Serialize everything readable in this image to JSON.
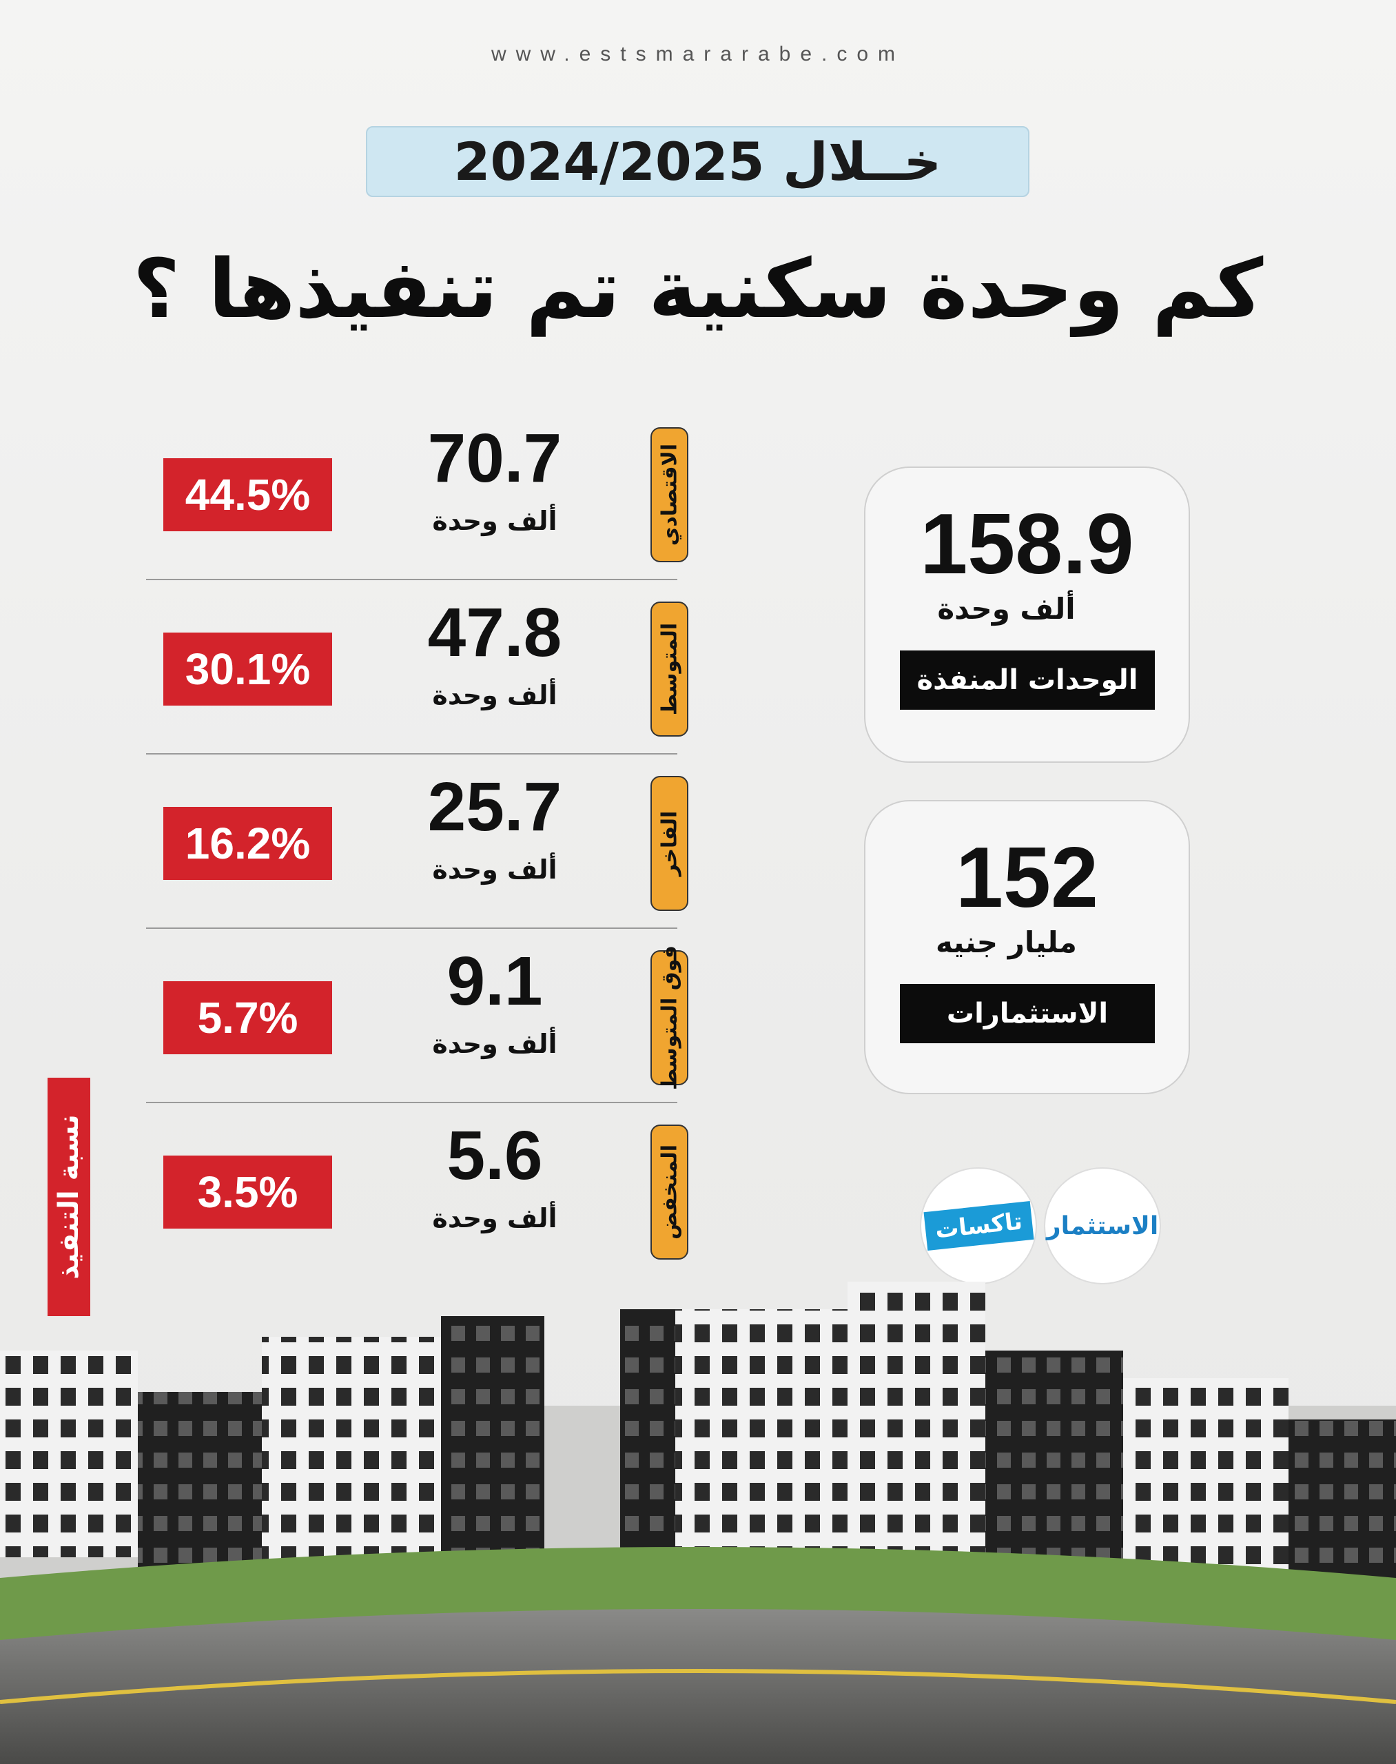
{
  "header": {
    "website": "www.estsmararabe.com",
    "period": "خــلال 2024/2025",
    "title": "كم وحدة سكنية تم تنفيذها ؟"
  },
  "summary": [
    {
      "value": "158.9",
      "unit": "ألف وحدة",
      "label": "الوحدات المنفذة"
    },
    {
      "value": "152",
      "unit": "مليار جنيه",
      "label": "الاستثمارات"
    }
  ],
  "categories": [
    {
      "name": "الاقتصادي",
      "value": "70.7",
      "unit": "ألف وحدة",
      "share": "44.5%"
    },
    {
      "name": "المتوسط",
      "value": "47.8",
      "unit": "ألف وحدة",
      "share": "30.1%"
    },
    {
      "name": "الفاخر",
      "value": "25.7",
      "unit": "ألف وحدة",
      "share": "16.2%"
    },
    {
      "name": "فوق المتوسط",
      "value": "9.1",
      "unit": "ألف وحدة",
      "share": "5.7%"
    },
    {
      "name": "المنخفض",
      "value": "5.6",
      "unit": "ألف وحدة",
      "share": "3.5%"
    }
  ],
  "side_label": "نسبة التنفيذ",
  "logos": [
    "تاكسات",
    "الاستثمار"
  ]
}
